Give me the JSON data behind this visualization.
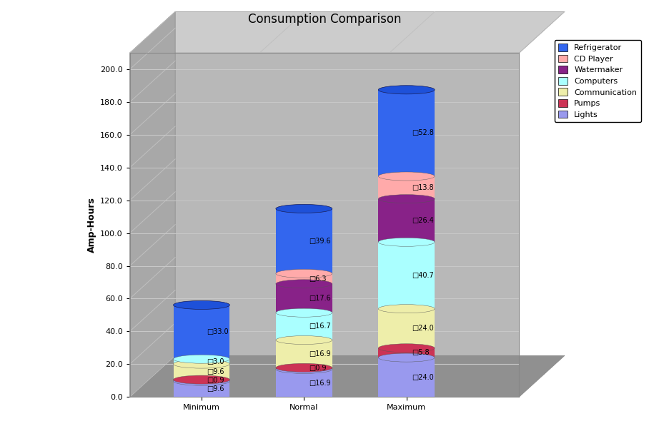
{
  "title": "Consumption Comparison",
  "ylabel": "Amp-Hours",
  "categories": [
    "Minimum",
    "Normal",
    "Maximum"
  ],
  "series": [
    {
      "label": "Lights",
      "color": "#9999EE",
      "values": [
        9.6,
        16.9,
        24.0
      ]
    },
    {
      "label": "Pumps",
      "color": "#CC3355",
      "values": [
        0.9,
        0.9,
        5.8
      ]
    },
    {
      "label": "Communication",
      "color": "#EEEEAA",
      "values": [
        9.6,
        16.9,
        24.0
      ]
    },
    {
      "label": "Computers",
      "color": "#AAFFFF",
      "values": [
        3.0,
        16.7,
        40.7
      ]
    },
    {
      "label": "Watermaker",
      "color": "#882288",
      "values": [
        0.0,
        17.6,
        26.4
      ]
    },
    {
      "label": "CD Player",
      "color": "#FFAAAA",
      "values": [
        0.0,
        6.3,
        13.8
      ]
    },
    {
      "label": "Refrigerator",
      "color": "#3366EE",
      "values": [
        33.0,
        39.6,
        52.8
      ]
    }
  ],
  "ylim": [
    0,
    210
  ],
  "yticks": [
    0.0,
    20.0,
    40.0,
    60.0,
    80.0,
    100.0,
    120.0,
    140.0,
    160.0,
    180.0,
    200.0
  ],
  "wall_color": "#B8B8B8",
  "floor_color": "#A0A0A0",
  "grid_color": "#D0D0D0",
  "top_wall_color": "#CCCCCC",
  "bg_color": "#FFFFFF",
  "bar_width": 0.55,
  "title_fontsize": 12,
  "label_fontsize": 9,
  "tick_fontsize": 8,
  "value_fontsize": 7
}
